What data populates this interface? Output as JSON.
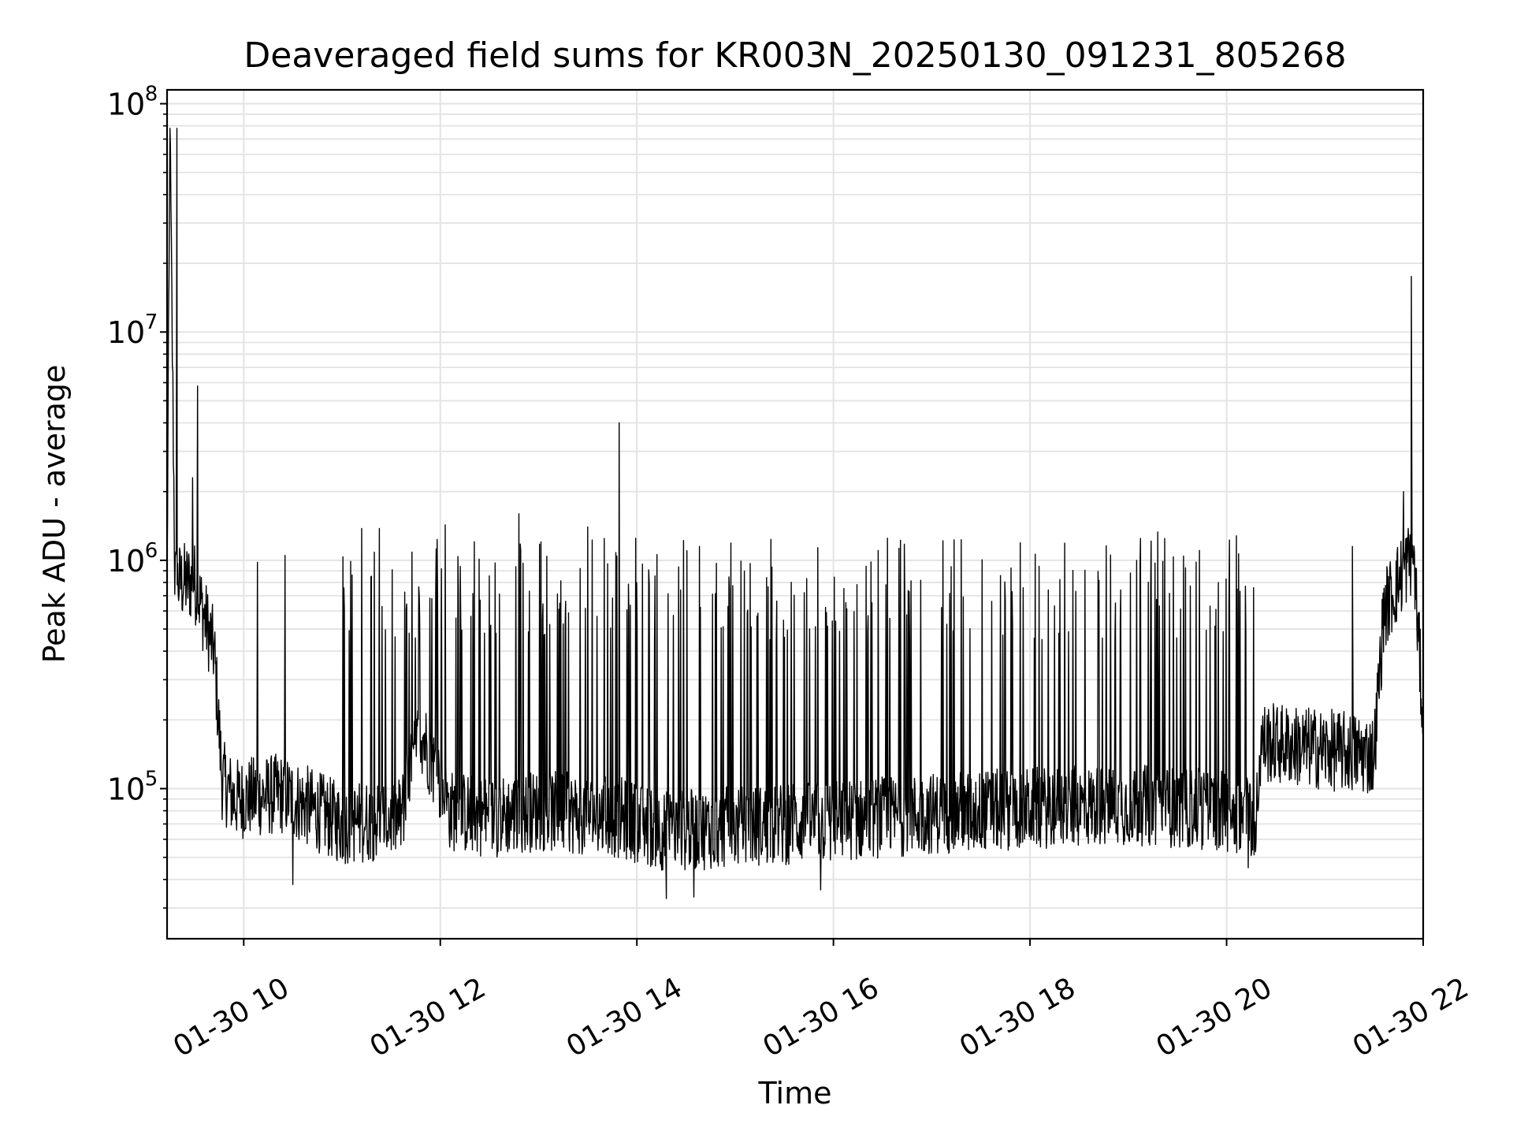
{
  "chart_data": {
    "type": "line",
    "title": "Deaveraged field sums for KR003N_20250130_091231_805268",
    "xlabel": "Time",
    "ylabel": "Peak ADU - average",
    "yscale": "log",
    "xlim_hours": [
      9.22,
      22.0
    ],
    "ylim": [
      22000,
      115000000
    ],
    "grid": true,
    "line_color": "#000000",
    "x_ticks": [
      {
        "hour": 10,
        "label": "01-30 10"
      },
      {
        "hour": 12,
        "label": "01-30 12"
      },
      {
        "hour": 14,
        "label": "01-30 14"
      },
      {
        "hour": 16,
        "label": "01-30 16"
      },
      {
        "hour": 18,
        "label": "01-30 18"
      },
      {
        "hour": 20,
        "label": "01-30 20"
      },
      {
        "hour": 22,
        "label": "01-30 22"
      }
    ],
    "y_ticks": [
      {
        "exp": 5,
        "base": "10",
        "power": "5"
      },
      {
        "exp": 6,
        "base": "10",
        "power": "6"
      },
      {
        "exp": 7,
        "base": "10",
        "power": "7"
      },
      {
        "exp": 8,
        "base": "10",
        "power": "8"
      }
    ],
    "series": [
      {
        "name": "Peak ADU - average",
        "baseline_hours": [
          9.22,
          9.25,
          9.3,
          9.5,
          9.7,
          9.78,
          9.9,
          10.4,
          11.0,
          11.6,
          11.8,
          12.1,
          12.5,
          13.0,
          13.8,
          14.3,
          15.0,
          16.0,
          17.0,
          18.0,
          19.0,
          20.0,
          20.3,
          20.35,
          21.5,
          21.6,
          21.9,
          22.0
        ],
        "baseline_values": [
          850000,
          70000000,
          800000,
          800000,
          400000,
          110000,
          90000,
          95000,
          70000,
          75000,
          180000,
          80000,
          75000,
          80000,
          75000,
          65000,
          68000,
          72000,
          78000,
          82000,
          85000,
          80000,
          75000,
          160000,
          140000,
          600000,
          1100000,
          200000
        ],
        "spikes": [
          {
            "hour": 9.25,
            "value": 78000000
          },
          {
            "hour": 9.32,
            "value": 78000000
          },
          {
            "hour": 9.53,
            "value": 5800000
          },
          {
            "hour": 9.48,
            "value": 2300000
          },
          {
            "hour": 10.14,
            "value": 980000
          },
          {
            "hour": 10.42,
            "value": 1050000
          },
          {
            "hour": 11.2,
            "value": 1380000
          },
          {
            "hour": 11.38,
            "value": 1380000
          },
          {
            "hour": 12.05,
            "value": 1430000
          },
          {
            "hour": 12.8,
            "value": 1600000
          },
          {
            "hour": 13.5,
            "value": 1400000
          },
          {
            "hour": 13.82,
            "value": 4000000
          },
          {
            "hour": 16.55,
            "value": 1250000
          },
          {
            "hour": 17.3,
            "value": 1230000
          },
          {
            "hour": 19.3,
            "value": 1330000
          },
          {
            "hour": 20.1,
            "value": 1280000
          },
          {
            "hour": 21.28,
            "value": 1150000
          },
          {
            "hour": 21.88,
            "value": 17500000
          },
          {
            "hour": 21.8,
            "value": 2000000
          }
        ],
        "dips": [
          {
            "hour": 10.5,
            "value": 38000
          },
          {
            "hour": 14.3,
            "value": 33000
          },
          {
            "hour": 14.58,
            "value": 33500
          },
          {
            "hour": 15.87,
            "value": 36000
          },
          {
            "hour": 20.22,
            "value": 45000
          }
        ],
        "burst_range_hours": [
          11.0,
          20.3
        ],
        "burst_peak_value": 1250000
      }
    ]
  }
}
